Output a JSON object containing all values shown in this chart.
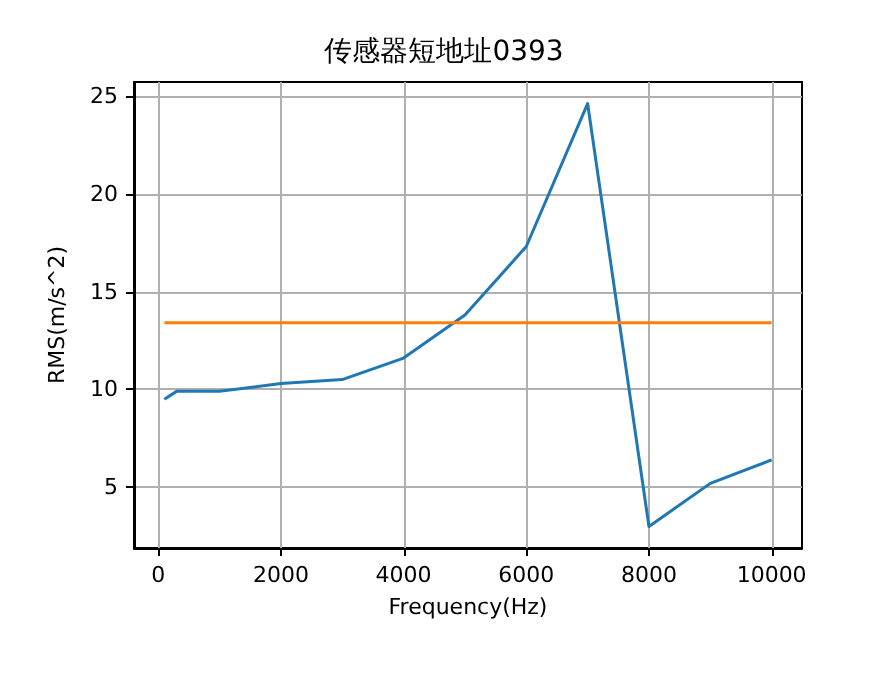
{
  "chart_data": {
    "type": "line",
    "title": "传感器短地址0393",
    "xlabel": "Frequency(Hz)",
    "ylabel": "RMS(m/s^2)",
    "xlim": [
      -395,
      10495
    ],
    "xticks": [
      0,
      2000,
      4000,
      6000,
      8000,
      10000
    ],
    "ylim": [
      1.9,
      25.7
    ],
    "yticks": [
      5,
      10,
      15,
      20,
      25
    ],
    "grid": true,
    "series": [
      {
        "color": "#1f77b4",
        "x": [
          100,
          300,
          1000,
          2000,
          3000,
          4000,
          5000,
          6000,
          7000,
          8000,
          9000,
          10000
        ],
        "values": [
          9.5,
          9.9,
          9.9,
          10.3,
          10.5,
          11.6,
          13.8,
          17.3,
          24.6,
          3.0,
          5.2,
          6.4
        ]
      },
      {
        "color": "#ff7f0e",
        "x": [
          100,
          10000
        ],
        "values": [
          13.4,
          13.4
        ]
      }
    ]
  }
}
